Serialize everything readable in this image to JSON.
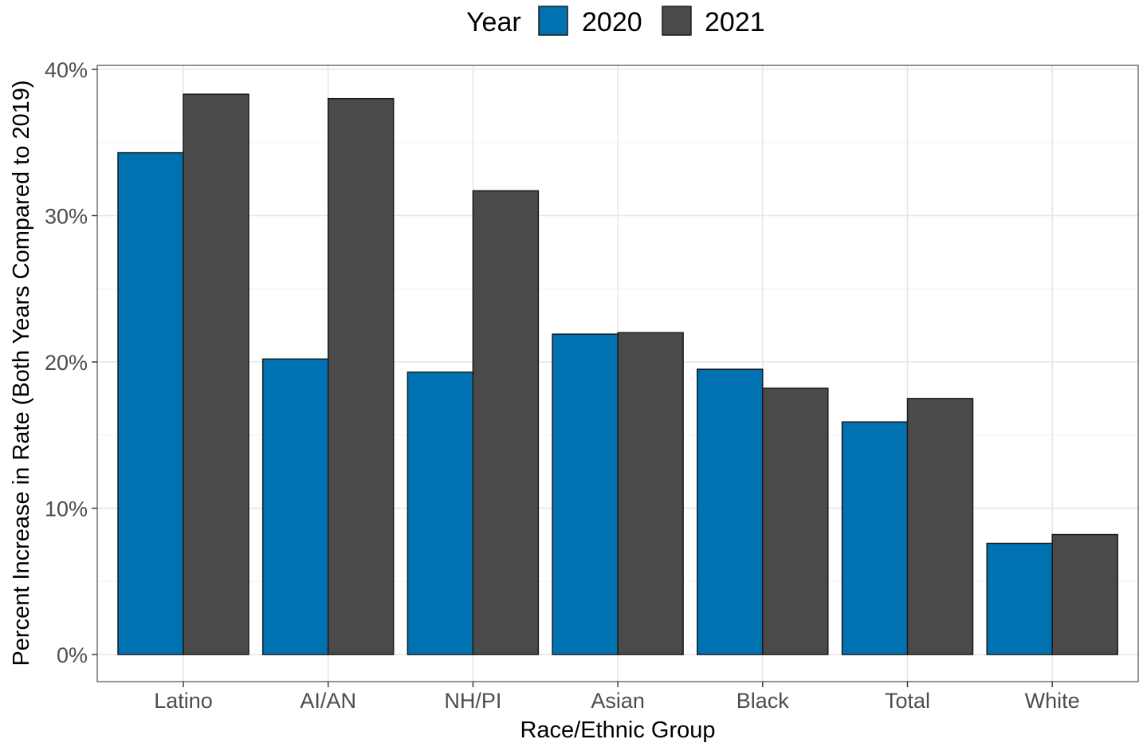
{
  "chart_data": {
    "type": "bar",
    "categories": [
      "Latino",
      "AI/AN",
      "NH/PI",
      "Asian",
      "Black",
      "Total",
      "White"
    ],
    "series": [
      {
        "name": "2020",
        "color": "#0072b2",
        "values": [
          34.3,
          20.2,
          19.3,
          21.9,
          19.5,
          15.9,
          7.6
        ]
      },
      {
        "name": "2021",
        "color": "#4a4a4a",
        "values": [
          38.3,
          38.0,
          31.7,
          22.0,
          18.2,
          17.5,
          8.2
        ]
      }
    ],
    "title": "",
    "xlabel": "Race/Ethnic Group",
    "ylabel": "Percent Increase in Rate (Both Years Compared to 2019)",
    "ylim": [
      0,
      40
    ],
    "yticks": [
      0,
      10,
      20,
      30,
      40
    ],
    "ytick_labels": [
      "0%",
      "10%",
      "20%",
      "30%",
      "40%"
    ],
    "grid": true,
    "legend": {
      "title": "Year",
      "position": "top"
    }
  }
}
